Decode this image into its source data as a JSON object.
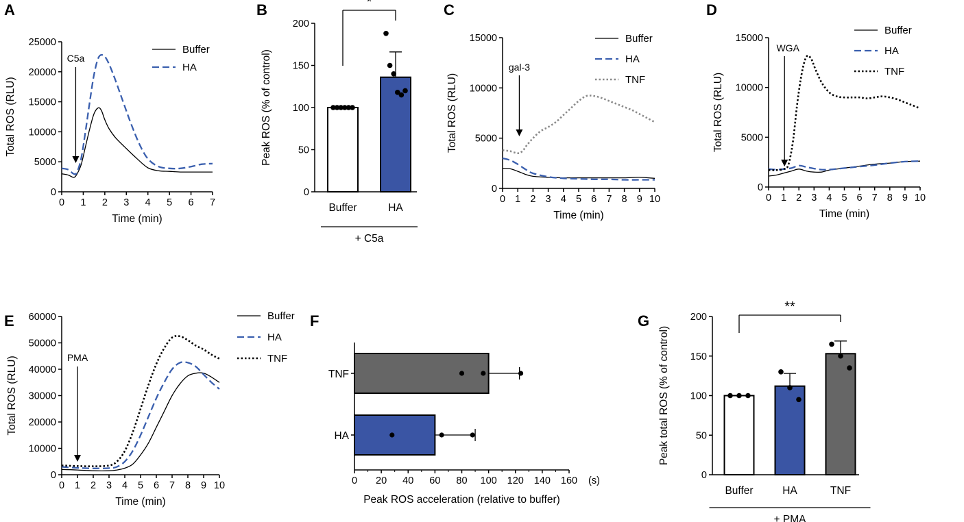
{
  "chart_data": [
    {
      "panel": "A",
      "type": "line",
      "xlabel": "Time (min)",
      "ylabel": "Total ROS (RLU)",
      "xlim": [
        0,
        7
      ],
      "ylim": [
        0,
        25000
      ],
      "xticks": [
        0,
        1,
        2,
        3,
        4,
        5,
        6,
        7
      ],
      "yticks": [
        0,
        5000,
        10000,
        15000,
        20000,
        25000
      ],
      "annotation": {
        "label": "C5a",
        "x": 0.65
      },
      "series": [
        {
          "name": "Buffer",
          "color": "#000000",
          "style": "solid",
          "x": [
            0,
            0.3,
            0.55,
            0.7,
            0.9,
            1.1,
            1.3,
            1.5,
            1.7,
            1.85,
            2.0,
            2.2,
            2.5,
            3.0,
            3.5,
            4.0,
            4.5,
            5.0,
            5.5,
            6.0,
            6.5,
            7.0
          ],
          "y": [
            3000,
            2800,
            2400,
            2900,
            4500,
            7500,
            10500,
            13000,
            14000,
            13500,
            12000,
            10500,
            9000,
            7200,
            5500,
            4000,
            3500,
            3400,
            3300,
            3300,
            3300,
            3300
          ]
        },
        {
          "name": "HA",
          "color": "#3a5fae",
          "style": "dashed",
          "x": [
            0,
            0.3,
            0.55,
            0.7,
            0.9,
            1.1,
            1.3,
            1.5,
            1.7,
            1.9,
            2.1,
            2.4,
            2.8,
            3.2,
            3.6,
            4.0,
            4.5,
            5.0,
            5.5,
            6.0,
            6.5,
            7.0
          ],
          "y": [
            3900,
            3700,
            3000,
            3200,
            5500,
            10000,
            15000,
            19500,
            22300,
            22800,
            22000,
            19500,
            15500,
            11500,
            8000,
            5500,
            4200,
            3900,
            3900,
            4200,
            4600,
            4700
          ]
        }
      ]
    },
    {
      "panel": "B",
      "type": "bar",
      "categories": [
        "Buffer",
        "HA"
      ],
      "values": [
        100,
        136
      ],
      "error": [
        0,
        30
      ],
      "points": [
        [
          100,
          100,
          100,
          100,
          100,
          100
        ],
        [
          188,
          150,
          140,
          118,
          115,
          120
        ]
      ],
      "colors": [
        "#ffffff",
        "#3a55a4"
      ],
      "ylabel": "Peak ROS (% of control)",
      "ylim": [
        0,
        200
      ],
      "yticks": [
        0,
        50,
        100,
        150,
        200
      ],
      "group_label": "+ C5a",
      "significance": "*"
    },
    {
      "panel": "C",
      "type": "line",
      "xlabel": "Time (min)",
      "ylabel": "Total ROS (RLU)",
      "xlim": [
        0,
        10
      ],
      "ylim": [
        0,
        15000
      ],
      "xticks": [
        0,
        1,
        2,
        3,
        4,
        5,
        6,
        7,
        8,
        9,
        10
      ],
      "yticks": [
        0,
        5000,
        10000,
        15000
      ],
      "annotation": {
        "label": "gal-3",
        "x": 1.1
      },
      "series": [
        {
          "name": "Buffer",
          "color": "#000000",
          "style": "solid",
          "x": [
            0,
            0.5,
            1,
            1.5,
            2,
            3,
            4,
            5,
            6,
            7,
            8,
            9,
            10
          ],
          "y": [
            2000,
            1950,
            1700,
            1400,
            1200,
            1100,
            1050,
            1050,
            1050,
            1050,
            1050,
            1100,
            1000
          ]
        },
        {
          "name": "HA",
          "color": "#3a5fae",
          "style": "dashed",
          "x": [
            0,
            0.5,
            1,
            1.5,
            2,
            3,
            4,
            5,
            6,
            7,
            8,
            9,
            10
          ],
          "y": [
            3000,
            2800,
            2400,
            1900,
            1500,
            1150,
            1000,
            950,
            900,
            900,
            850,
            850,
            850
          ]
        },
        {
          "name": "TNF",
          "color": "#8a8a8a",
          "style": "dotted",
          "x": [
            0,
            0.5,
            1,
            1.3,
            1.6,
            2,
            2.5,
            3,
            3.5,
            4,
            4.5,
            5,
            5.5,
            6,
            6.5,
            7,
            7.5,
            8,
            8.5,
            9,
            9.5,
            10
          ],
          "y": [
            3800,
            3700,
            3500,
            3700,
            4300,
            5000,
            5700,
            6100,
            6600,
            7300,
            8000,
            8700,
            9200,
            9200,
            9000,
            8700,
            8400,
            8100,
            7800,
            7400,
            7000,
            6600
          ]
        }
      ]
    },
    {
      "panel": "D",
      "type": "line",
      "xlabel": "Time (min)",
      "ylabel": "Total ROS (RLU)",
      "xlim": [
        0,
        10
      ],
      "ylim": [
        0,
        15000
      ],
      "xticks": [
        0,
        1,
        2,
        3,
        4,
        5,
        6,
        7,
        8,
        9,
        10
      ],
      "yticks": [
        0,
        5000,
        10000,
        15000
      ],
      "annotation": {
        "label": "WGA",
        "x": 1.05
      },
      "series": [
        {
          "name": "Buffer",
          "color": "#000000",
          "style": "solid",
          "x": [
            0,
            0.5,
            1,
            1.5,
            2,
            2.5,
            3,
            3.5,
            4,
            5,
            6,
            7,
            8,
            9,
            10
          ],
          "y": [
            1100,
            1200,
            1400,
            1600,
            1800,
            1600,
            1500,
            1500,
            1700,
            1900,
            2100,
            2300,
            2400,
            2550,
            2600
          ]
        },
        {
          "name": "HA",
          "color": "#3a5fae",
          "style": "dashed",
          "x": [
            0,
            0.5,
            1,
            1.5,
            2,
            2.5,
            3,
            3.5,
            4,
            5,
            6,
            7,
            8,
            9,
            10
          ],
          "y": [
            1800,
            1750,
            1800,
            1900,
            2150,
            2000,
            1850,
            1750,
            1750,
            1900,
            2050,
            2200,
            2400,
            2550,
            2600
          ]
        },
        {
          "name": "TNF",
          "color": "#000000",
          "style": "dotted",
          "x": [
            0,
            0.5,
            1,
            1.3,
            1.6,
            1.9,
            2.2,
            2.5,
            2.8,
            3.1,
            3.5,
            4,
            4.5,
            5,
            5.5,
            6,
            6.5,
            7,
            7.5,
            8,
            8.5,
            9,
            9.5,
            10
          ],
          "y": [
            1700,
            1700,
            1800,
            2200,
            4500,
            8500,
            11500,
            13100,
            12900,
            11800,
            10500,
            9500,
            9100,
            9000,
            9000,
            9000,
            8900,
            9000,
            9100,
            9000,
            8800,
            8500,
            8200,
            7900
          ]
        }
      ]
    },
    {
      "panel": "E",
      "type": "line",
      "xlabel": "Time (min)",
      "ylabel": "Total ROS (RLU)",
      "xlim": [
        0,
        10
      ],
      "ylim": [
        0,
        60000
      ],
      "xticks": [
        0,
        1,
        2,
        3,
        4,
        5,
        6,
        7,
        8,
        9,
        10
      ],
      "yticks": [
        0,
        10000,
        20000,
        30000,
        40000,
        50000,
        60000
      ],
      "annotation": {
        "label": "PMA",
        "x": 1.0
      },
      "series": [
        {
          "name": "Buffer",
          "color": "#000000",
          "style": "solid",
          "x": [
            0,
            1,
            2,
            3,
            3.5,
            4,
            4.5,
            5,
            5.5,
            6,
            6.5,
            7,
            7.5,
            8,
            8.5,
            9,
            9.5,
            10
          ],
          "y": [
            2000,
            1800,
            1500,
            1500,
            1800,
            2500,
            4000,
            7500,
            12000,
            18000,
            24000,
            30000,
            34500,
            37500,
            38500,
            38500,
            37000,
            35000
          ]
        },
        {
          "name": "HA",
          "color": "#3a5fae",
          "style": "dashed",
          "x": [
            0,
            1,
            2,
            3,
            3.5,
            4,
            4.5,
            5,
            5.5,
            6,
            6.5,
            7,
            7.5,
            8,
            8.5,
            9,
            9.5,
            10
          ],
          "y": [
            3000,
            2600,
            2400,
            2500,
            3000,
            5000,
            9000,
            15000,
            22000,
            29000,
            35000,
            40000,
            42500,
            42500,
            41000,
            38000,
            35000,
            32500
          ]
        },
        {
          "name": "TNF",
          "color": "#000000",
          "style": "dotted",
          "x": [
            0,
            1,
            2,
            3,
            3.5,
            4,
            4.5,
            5,
            5.5,
            6,
            6.5,
            7,
            7.5,
            8,
            8.5,
            9,
            9.5,
            10
          ],
          "y": [
            3500,
            3300,
            3200,
            3500,
            5000,
            9000,
            16000,
            25000,
            34000,
            42000,
            48000,
            52000,
            52500,
            51000,
            49000,
            47500,
            45500,
            44000
          ]
        }
      ]
    },
    {
      "panel": "F",
      "type": "bar",
      "orientation": "horizontal",
      "categories": [
        "TNF",
        "HA"
      ],
      "values": [
        100,
        60
      ],
      "error": [
        23,
        30
      ],
      "points": [
        [
          80,
          96,
          124
        ],
        [
          28,
          65,
          88
        ]
      ],
      "colors": [
        "#666666",
        "#3a55a4"
      ],
      "xlabel": "Peak ROS acceleration (relative to buffer)",
      "xlim": [
        0,
        160
      ],
      "xticks": [
        0,
        20,
        40,
        60,
        80,
        100,
        120,
        140,
        160
      ],
      "unit_label": "(s)"
    },
    {
      "panel": "G",
      "type": "bar",
      "categories": [
        "Buffer",
        "HA",
        "TNF"
      ],
      "values": [
        100,
        112,
        153
      ],
      "error": [
        0,
        16,
        16
      ],
      "points": [
        [
          100,
          100,
          100
        ],
        [
          130,
          110,
          95
        ],
        [
          165,
          150,
          135
        ]
      ],
      "colors": [
        "#ffffff",
        "#3a55a4",
        "#666666"
      ],
      "ylabel": "Peak total ROS (% of control)",
      "ylim": [
        0,
        200
      ],
      "yticks": [
        0,
        50,
        100,
        150,
        200
      ],
      "group_label": "+ PMA",
      "significance": "**"
    }
  ]
}
